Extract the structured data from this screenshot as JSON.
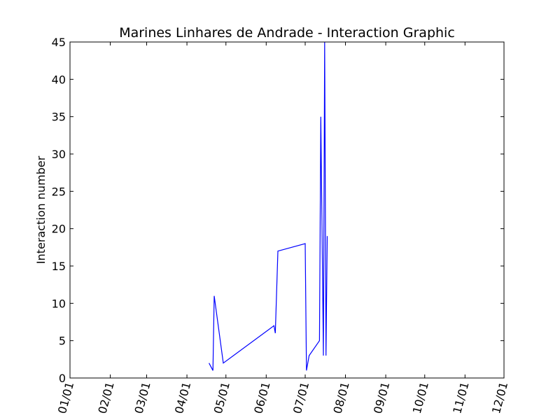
{
  "chart_data": {
    "type": "line",
    "title": "Marines Linhares de Andrade - Interaction Graphic",
    "xlabel": "",
    "ylabel": "Interaction number",
    "x_tick_labels": [
      "01/01",
      "02/01",
      "03/01",
      "04/01",
      "05/01",
      "06/01",
      "07/01",
      "08/01",
      "09/01",
      "10/01",
      "11/01",
      "12/01"
    ],
    "y_ticks": [
      0,
      5,
      10,
      15,
      20,
      25,
      30,
      35,
      40,
      45
    ],
    "xlim": [
      "01/01",
      "12/01"
    ],
    "ylim": [
      0,
      45
    ],
    "grid": false,
    "line_color": "#0000ff",
    "series": [
      {
        "x": [
          "04/18",
          "04/21",
          "04/22",
          "04/29",
          "06/07",
          "06/08",
          "06/10",
          "07/01",
          "07/02",
          "07/04",
          "07/12",
          "07/13",
          "07/15",
          "07/16",
          "07/17",
          "07/18"
        ],
        "y": [
          2,
          1,
          11,
          2,
          7,
          6,
          17,
          18,
          1,
          3,
          5,
          35,
          3,
          45,
          3,
          19
        ]
      }
    ]
  }
}
